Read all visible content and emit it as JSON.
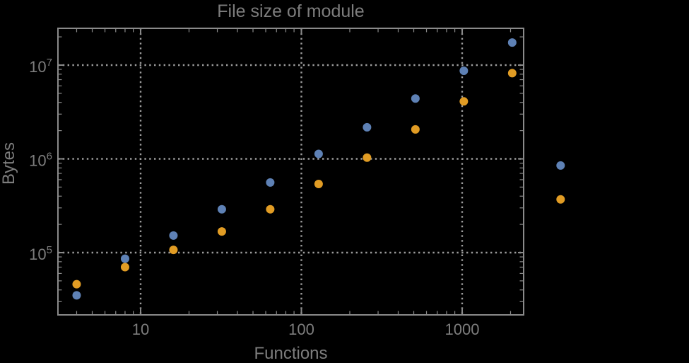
{
  "title": "File size of module",
  "x_axis": {
    "label": "Functions",
    "scale": "log",
    "ticks": [
      {
        "value": 10,
        "label": "10"
      },
      {
        "value": 100,
        "label": "100"
      },
      {
        "value": 1000,
        "label": "1000"
      }
    ]
  },
  "y_axis": {
    "label": "Bytes",
    "scale": "log",
    "ticks": [
      {
        "value": 100000,
        "exponent": "5"
      },
      {
        "value": 1000000,
        "exponent": "6"
      },
      {
        "value": 10000000,
        "exponent": "7"
      }
    ]
  },
  "chart_data": {
    "type": "scatter",
    "title": "File size of module",
    "xlabel": "Functions",
    "ylabel": "Bytes",
    "x_scale": "log",
    "y_scale": "log",
    "xlim": [
      3.05,
      2390
    ],
    "ylim": [
      21500,
      24800000
    ],
    "grid": "dotted gray lines at powers of 10",
    "legend": "none",
    "x": [
      4,
      8,
      16,
      32,
      64,
      128,
      256,
      512,
      1024,
      2048,
      4096
    ],
    "series": [
      {
        "name": "blue",
        "color": "#5E81B5",
        "values": [
          35000,
          86000,
          152000,
          290000,
          560000,
          1130000,
          2170000,
          4400000,
          8700000,
          17400000,
          850000
        ]
      },
      {
        "name": "orange",
        "color": "#E19C24",
        "values": [
          46000,
          70000,
          107000,
          168000,
          290000,
          540000,
          1030000,
          2060000,
          4100000,
          8200000,
          370000
        ]
      }
    ]
  },
  "colors": {
    "background": "#000000",
    "frame": "#8a8a8a",
    "grid": "#9c9c9c",
    "text": "#7d7d7d"
  }
}
